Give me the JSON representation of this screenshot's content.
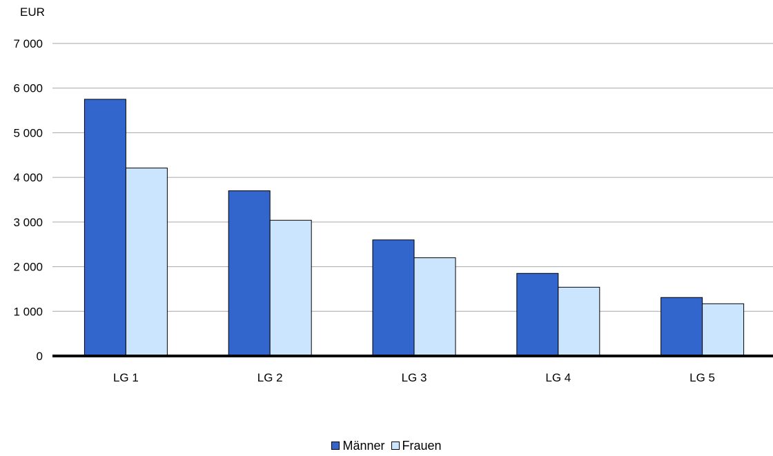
{
  "chart_data": {
    "type": "bar",
    "unit_label": "EUR",
    "title": "",
    "xlabel": "",
    "ylabel": "",
    "categories": [
      "LG 1",
      "LG 2",
      "LG 3",
      "LG 4",
      "LG 5"
    ],
    "series": [
      {
        "name": "Männer",
        "color": "#3366cc",
        "values": [
          5750,
          3700,
          2600,
          1850,
          1310
        ]
      },
      {
        "name": "Frauen",
        "color": "#cce5ff",
        "values": [
          4210,
          3040,
          2200,
          1540,
          1170
        ]
      }
    ],
    "ylim": [
      0,
      7000
    ],
    "yticks": [
      0,
      1000,
      2000,
      3000,
      4000,
      5000,
      6000,
      7000
    ],
    "ytick_labels": [
      "0",
      "1 000",
      "2 000",
      "3 000",
      "4 000",
      "5 000",
      "6 000",
      "7 000"
    ],
    "grid": true,
    "legend_position": "bottom"
  }
}
